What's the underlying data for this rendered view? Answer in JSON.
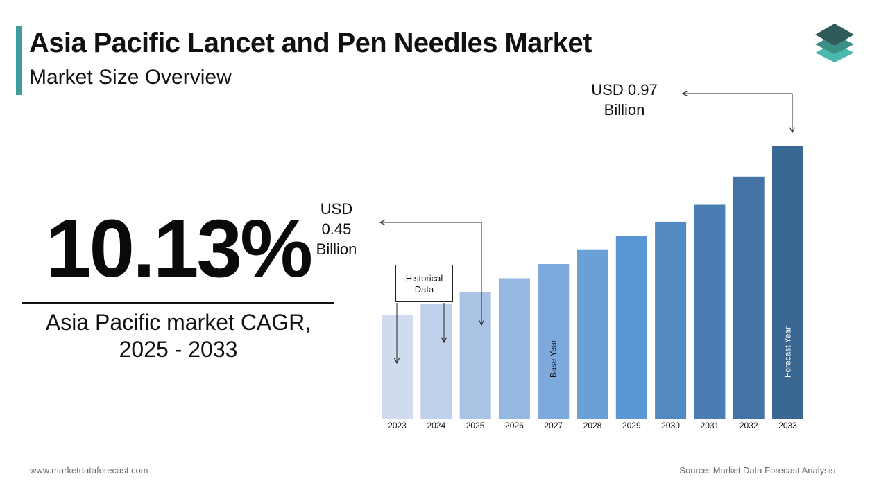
{
  "header": {
    "title": "Asia Pacific Lancet and Pen Needles Market",
    "subtitle": "Market Size Overview"
  },
  "cagr": {
    "value": "10.13%",
    "label_line1": "Asia Pacific market CAGR,",
    "label_line2": "2025 - 2033"
  },
  "callouts": {
    "start": {
      "line1": "USD",
      "line2": "0.45",
      "line3": "Billion"
    },
    "end": {
      "line1": "USD 0.97",
      "line2": "Billion"
    },
    "historical_line1": "Historical",
    "historical_line2": "Data"
  },
  "footer": {
    "website": "www.marketdataforecast.com",
    "source": "Source: Market Data Forecast Analysis"
  },
  "colors": {
    "accent": "#3e9e9c",
    "bars": [
      "#d0dcee",
      "#bed0ea",
      "#aac3e5",
      "#95b7e0",
      "#7ea9dd",
      "#6aa0d8",
      "#5a96d3",
      "#5289c0",
      "#4a7eb2",
      "#4373a5",
      "#3b6793"
    ]
  },
  "chart_data": {
    "type": "bar",
    "categories": [
      "2023",
      "2024",
      "2025",
      "2026",
      "2027",
      "2028",
      "2029",
      "2030",
      "2031",
      "2032",
      "2033"
    ],
    "values": [
      0.37,
      0.41,
      0.45,
      0.5,
      0.55,
      0.6,
      0.65,
      0.7,
      0.76,
      0.86,
      0.97
    ],
    "bar_labels": {
      "2027": "Base Year",
      "2033": "Forecast Year"
    },
    "title": "",
    "xlabel": "",
    "ylabel": "",
    "ylim": [
      0,
      1.0
    ],
    "grid": false,
    "legend": "none"
  }
}
